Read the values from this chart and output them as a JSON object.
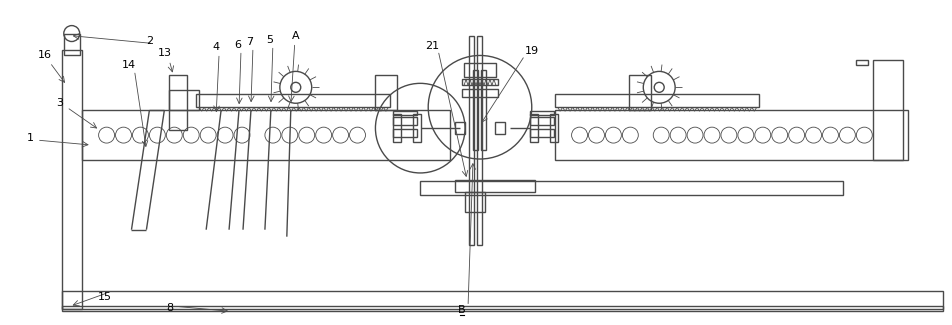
{
  "bg_color": "#ffffff",
  "lc": "#4a4a4a",
  "lw": 1.0,
  "tlw": 0.6,
  "figsize": [
    9.52,
    3.25
  ],
  "dpi": 100
}
